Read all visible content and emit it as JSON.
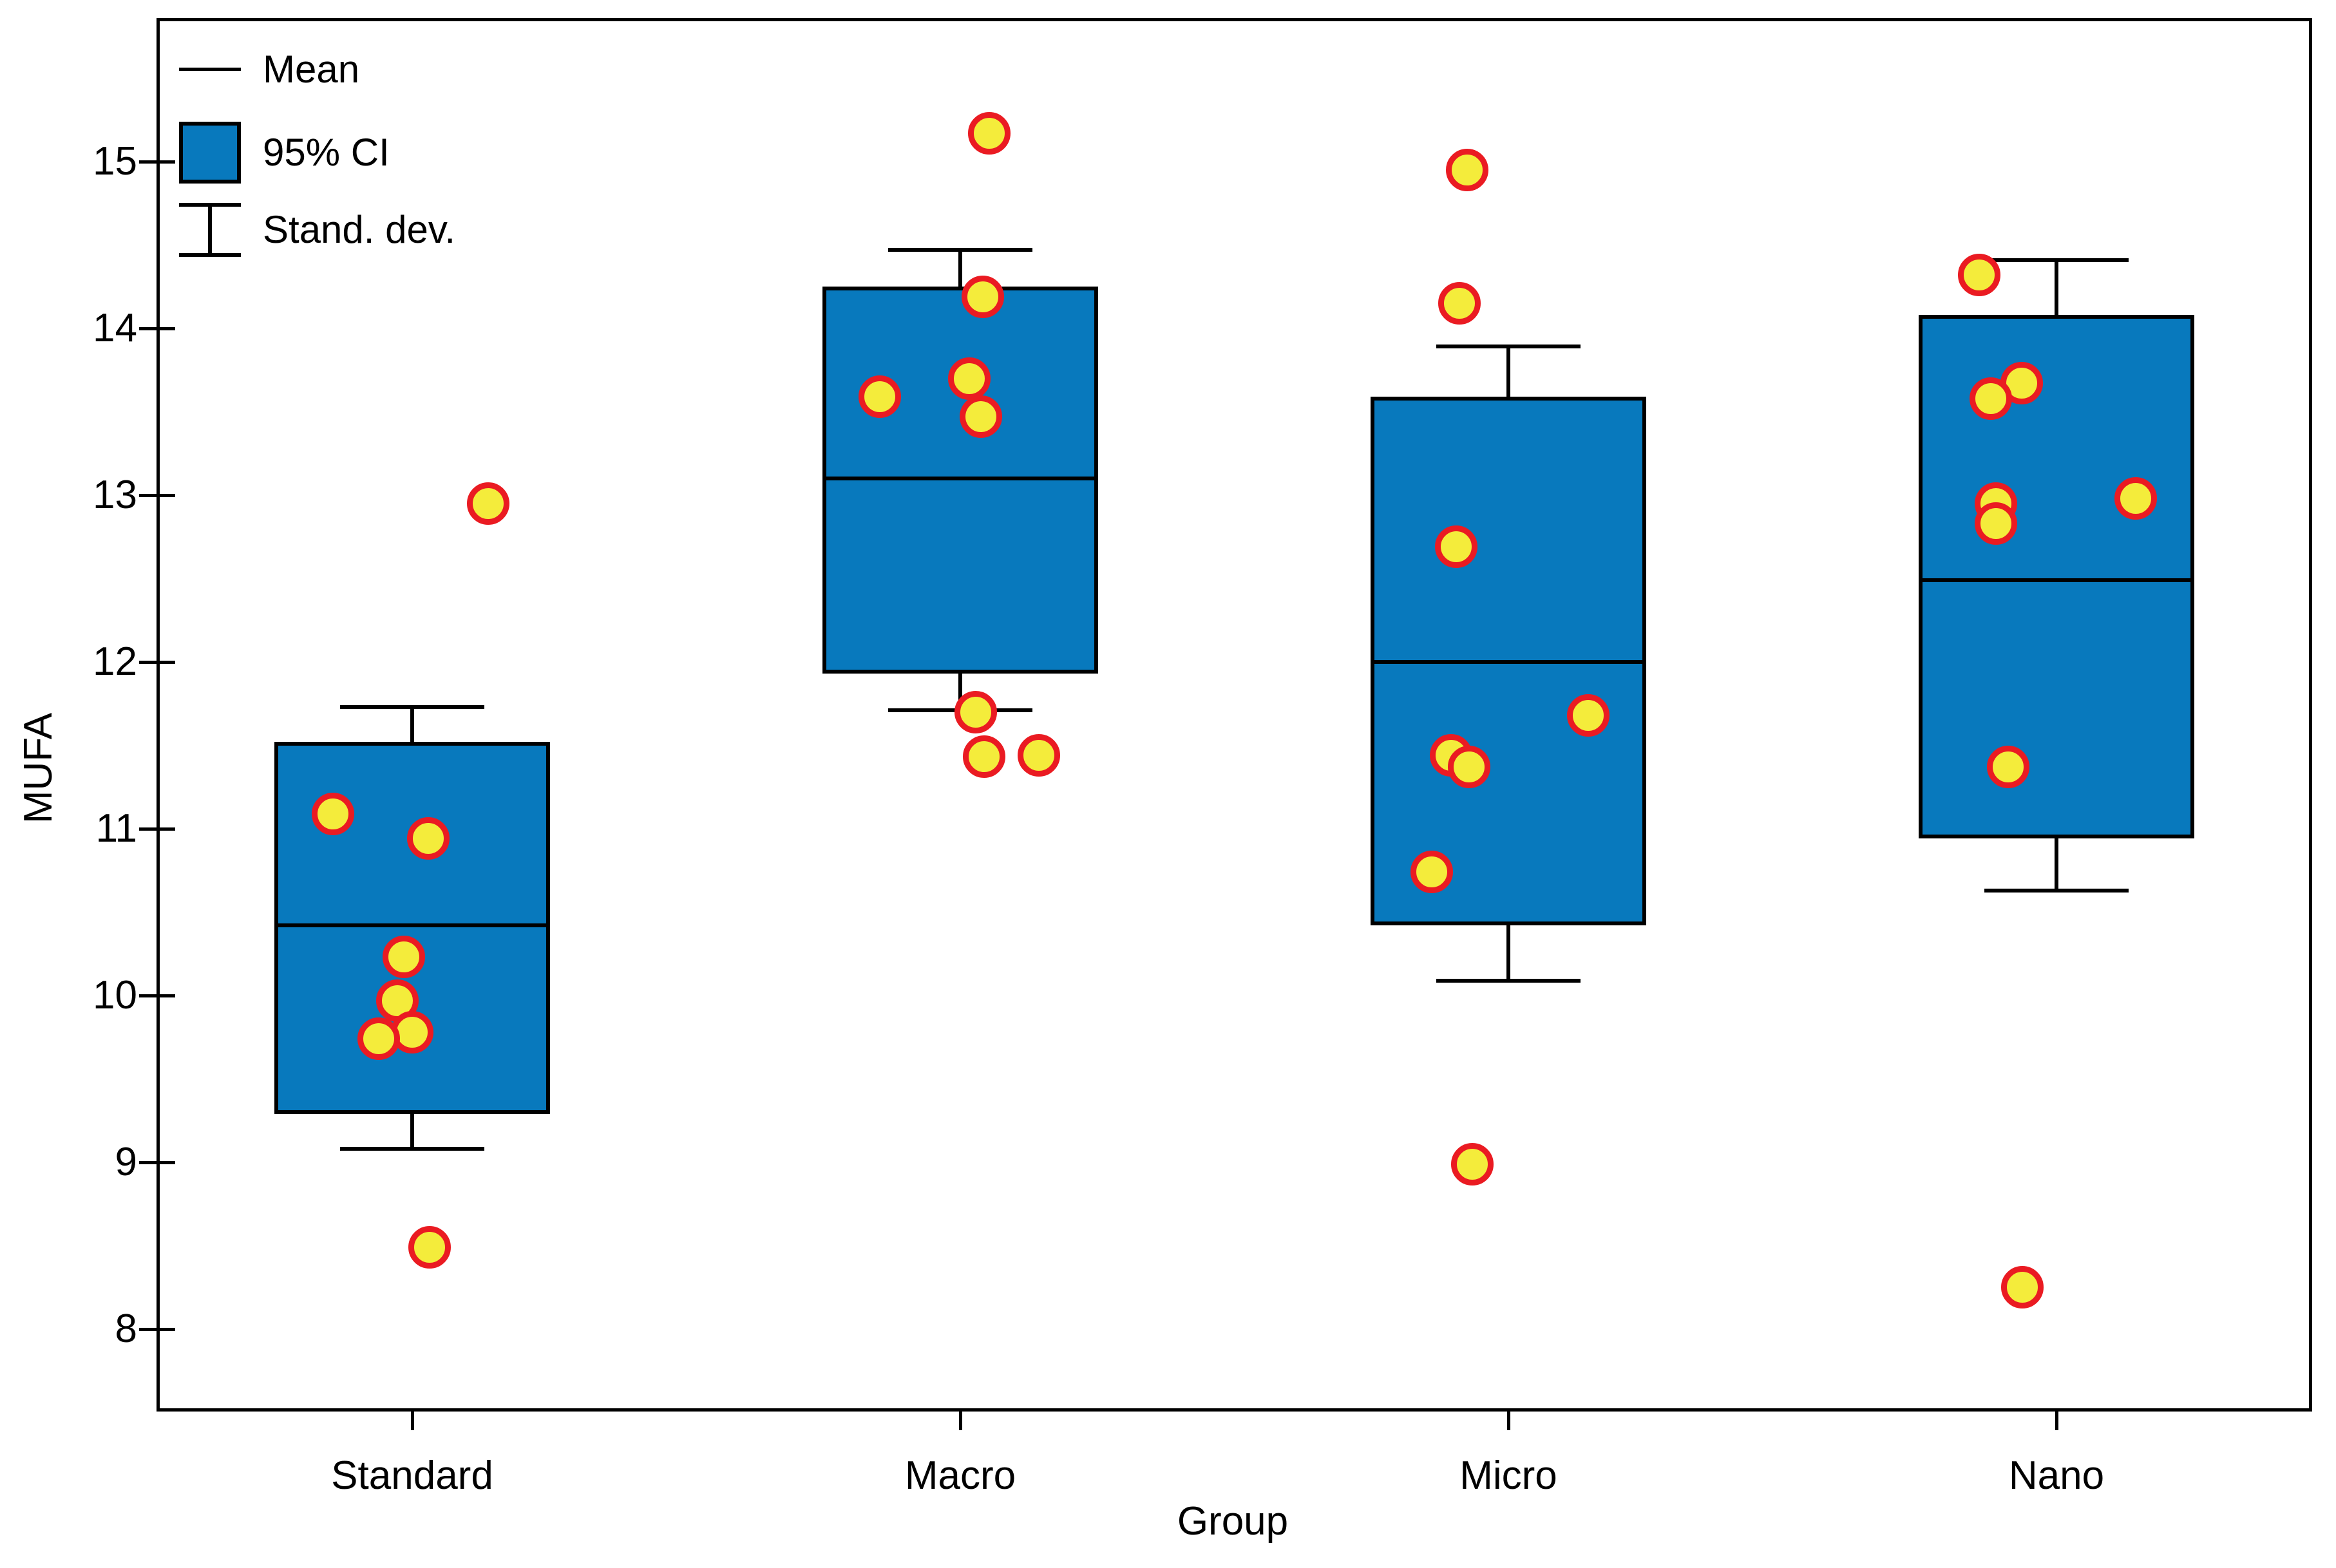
{
  "chart_data": {
    "type": "box",
    "title": "",
    "xlabel": "Group",
    "ylabel": "MUFA",
    "ylim": [
      7.53,
      15.86
    ],
    "yticks": [
      8,
      9,
      10,
      11,
      12,
      13,
      14,
      15
    ],
    "categories": [
      "Standard",
      "Macro",
      "Micro",
      "Nano"
    ],
    "legend": [
      {
        "icon": "mean-line-icon",
        "label": "Mean"
      },
      {
        "icon": "ci-box-icon",
        "label": "95% CI"
      },
      {
        "icon": "errorbar-icon",
        "label": "Stand. dev."
      }
    ],
    "colors": {
      "ci_fill": "#0879BD",
      "line": "#000000",
      "point_fill": "#F4EC3B",
      "point_stroke": "#EA1B22"
    },
    "groups": [
      {
        "name": "Standard",
        "mean": 10.42,
        "ci_low": 9.29,
        "ci_high": 11.52,
        "sd_low": 9.08,
        "sd_high": 11.73,
        "points": [
          {
            "v": 12.95,
            "dx": 118
          },
          {
            "v": 11.09,
            "dx": -123
          },
          {
            "v": 10.94,
            "dx": 25
          },
          {
            "v": 10.23,
            "dx": -13
          },
          {
            "v": 9.97,
            "dx": -23
          },
          {
            "v": 9.78,
            "dx": 0
          },
          {
            "v": 9.74,
            "dx": -52
          },
          {
            "v": 8.49,
            "dx": 27
          }
        ]
      },
      {
        "name": "Macro",
        "mean": 13.1,
        "ci_low": 11.93,
        "ci_high": 14.25,
        "sd_low": 11.71,
        "sd_high": 14.47,
        "points": [
          {
            "v": 15.17,
            "dx": 45
          },
          {
            "v": 14.19,
            "dx": 35
          },
          {
            "v": 13.7,
            "dx": 14
          },
          {
            "v": 13.59,
            "dx": -125
          },
          {
            "v": 13.47,
            "dx": 32
          },
          {
            "v": 11.7,
            "dx": 24
          },
          {
            "v": 11.44,
            "dx": 122
          },
          {
            "v": 11.43,
            "dx": 37
          }
        ]
      },
      {
        "name": "Micro",
        "mean": 12.0,
        "ci_low": 10.42,
        "ci_high": 13.59,
        "sd_low": 10.09,
        "sd_high": 13.89,
        "points": [
          {
            "v": 14.95,
            "dx": -64
          },
          {
            "v": 14.15,
            "dx": -76
          },
          {
            "v": 12.69,
            "dx": -81
          },
          {
            "v": 11.68,
            "dx": 124
          },
          {
            "v": 11.44,
            "dx": -89
          },
          {
            "v": 11.37,
            "dx": -61
          },
          {
            "v": 10.74,
            "dx": -119
          },
          {
            "v": 8.99,
            "dx": -56
          }
        ]
      },
      {
        "name": "Nano",
        "mean": 12.49,
        "ci_low": 10.94,
        "ci_high": 14.08,
        "sd_low": 10.63,
        "sd_high": 14.41,
        "points": [
          {
            "v": 14.32,
            "dx": -120
          },
          {
            "v": 13.67,
            "dx": -54
          },
          {
            "v": 13.58,
            "dx": -102
          },
          {
            "v": 12.98,
            "dx": 123
          },
          {
            "v": 12.95,
            "dx": -94
          },
          {
            "v": 12.83,
            "dx": -94
          },
          {
            "v": 11.37,
            "dx": -75
          },
          {
            "v": 8.25,
            "dx": -53
          }
        ]
      }
    ]
  }
}
